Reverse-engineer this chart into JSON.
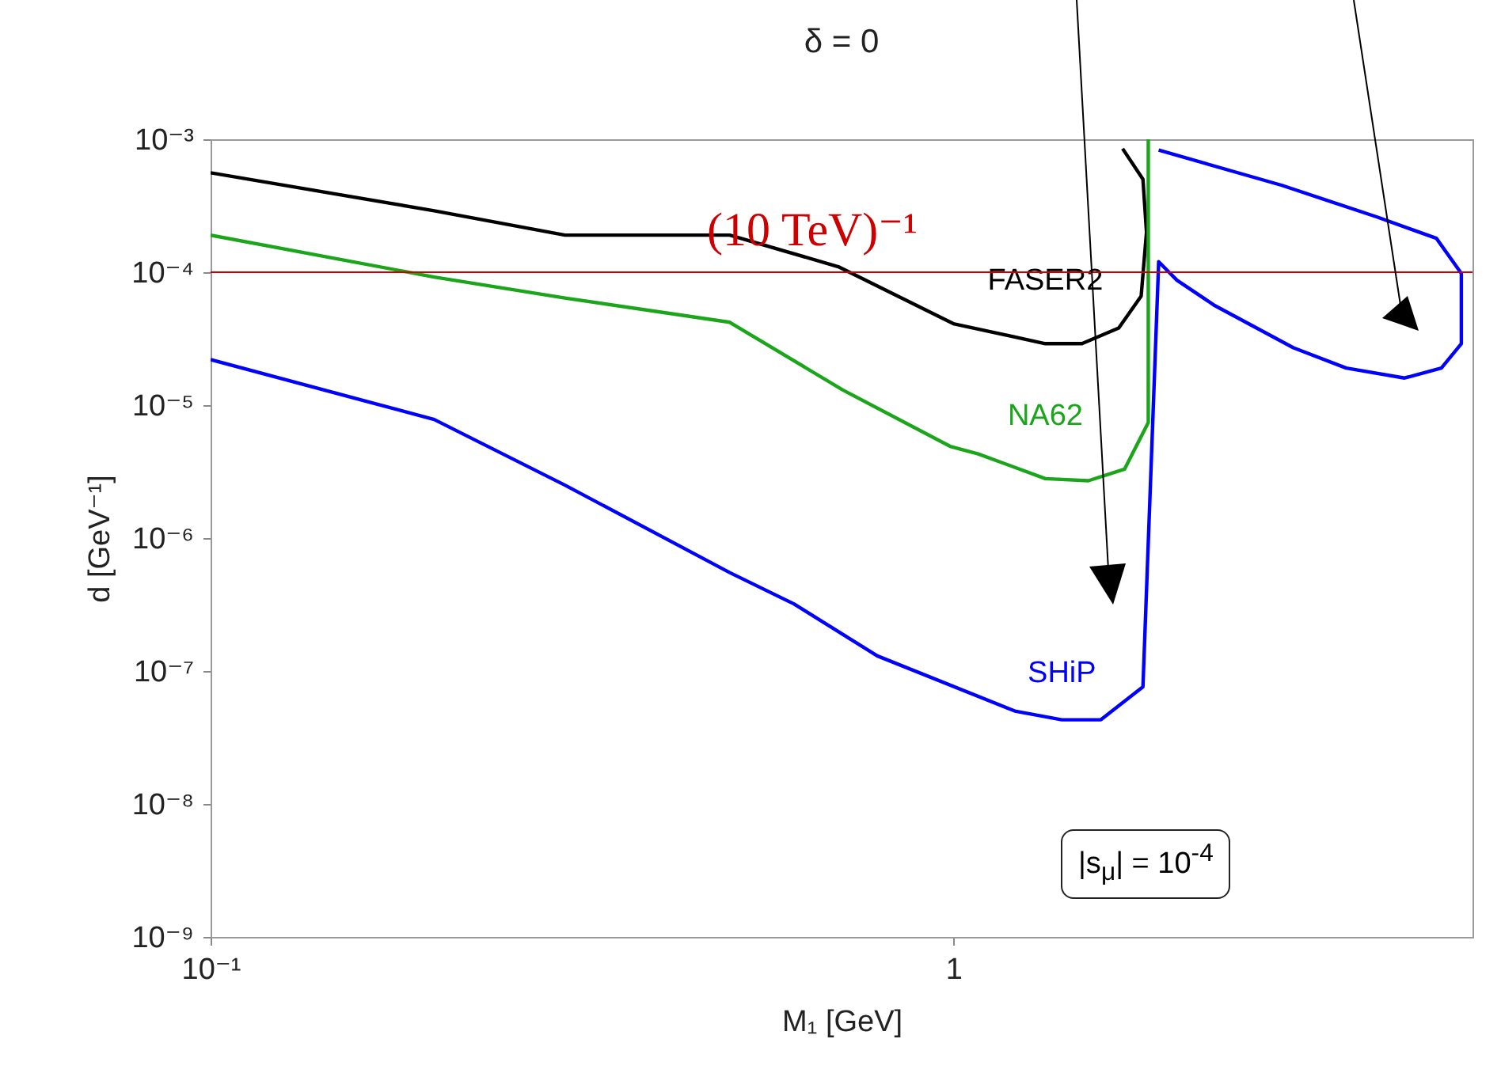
{
  "chart_data": {
    "type": "line",
    "title": "δ = 0",
    "xlabel": "M₁ [GeV]",
    "ylabel": "d [GeV⁻¹]",
    "log": "xy",
    "marker": "none",
    "line_style": "solid",
    "xlim": [
      0.1,
      5
    ],
    "ylim": [
      1e-09,
      0.001
    ],
    "xticks": [
      {
        "value": 0.1,
        "label": "10⁻¹"
      },
      1
    ],
    "yticks": [
      {
        "value": 1e-09,
        "label": "10⁻⁹"
      },
      {
        "value": 1e-08,
        "label": "10⁻⁸"
      },
      {
        "value": 1e-07,
        "label": "10⁻⁷"
      },
      {
        "value": 1e-06,
        "label": "10⁻⁶"
      },
      {
        "value": 1e-05,
        "label": "10⁻⁵"
      },
      {
        "value": 0.0001,
        "label": "10⁻⁴"
      },
      {
        "value": 0.001,
        "label": "10⁻³"
      }
    ],
    "series": [
      {
        "name": "FASER2",
        "color": "#000000",
        "x": [
          0.1,
          0.2,
          0.3,
          0.5,
          0.7,
          1,
          1.33,
          1.49,
          1.67,
          1.79,
          1.82,
          1.8,
          1.69
        ],
        "values": [
          0.00056,
          0.00029,
          0.00019,
          0.00019,
          0.00011,
          4.1e-05,
          2.9e-05,
          2.9e-05,
          3.8e-05,
          6.6e-05,
          0.0002,
          0.0005,
          0.00085
        ]
      },
      {
        "name": "NA62",
        "color": "#1aa51a",
        "x": [
          0.1,
          0.2,
          0.3,
          0.5,
          0.71,
          0.99,
          1.08,
          1.33,
          1.52,
          1.7,
          1.83,
          1.83
        ],
        "values": [
          0.00019,
          9.2e-05,
          6.4e-05,
          4.2e-05,
          1.3e-05,
          4.9e-06,
          4.3e-06,
          2.8e-06,
          2.7e-06,
          3.3e-06,
          7.4e-06,
          0.001
        ]
      },
      {
        "name": "SHiP",
        "color": "#0000ff",
        "x": [
          0.1,
          0.2,
          0.3,
          0.5,
          0.61,
          0.79,
          1.21,
          1.4,
          1.58,
          1.8,
          1.89,
          2.0,
          2.25,
          2.87,
          3.38,
          4.05,
          4.54,
          4.83,
          4.83,
          4.47,
          3.72,
          2.77,
          1.89
        ],
        "values": [
          2.2e-05,
          7.8e-06,
          2.5e-06,
          5.5e-07,
          3.2e-07,
          1.3e-07,
          5e-08,
          4.3e-08,
          4.3e-08,
          7.6e-08,
          0.00012,
          8.7e-05,
          5.6e-05,
          2.7e-05,
          1.9e-05,
          1.6e-05,
          1.9e-05,
          2.9e-05,
          9.8e-05,
          0.00018,
          0.00026,
          0.00045,
          0.00083
        ]
      }
    ],
    "ref_lines": [
      {
        "axis": "y",
        "value": 0.0001,
        "label": "(10 TeV)⁻¹",
        "color": "#cc0000"
      }
    ],
    "annotations": [
      "|s$_{μ}$| = 10$^{-4}$"
    ]
  }
}
